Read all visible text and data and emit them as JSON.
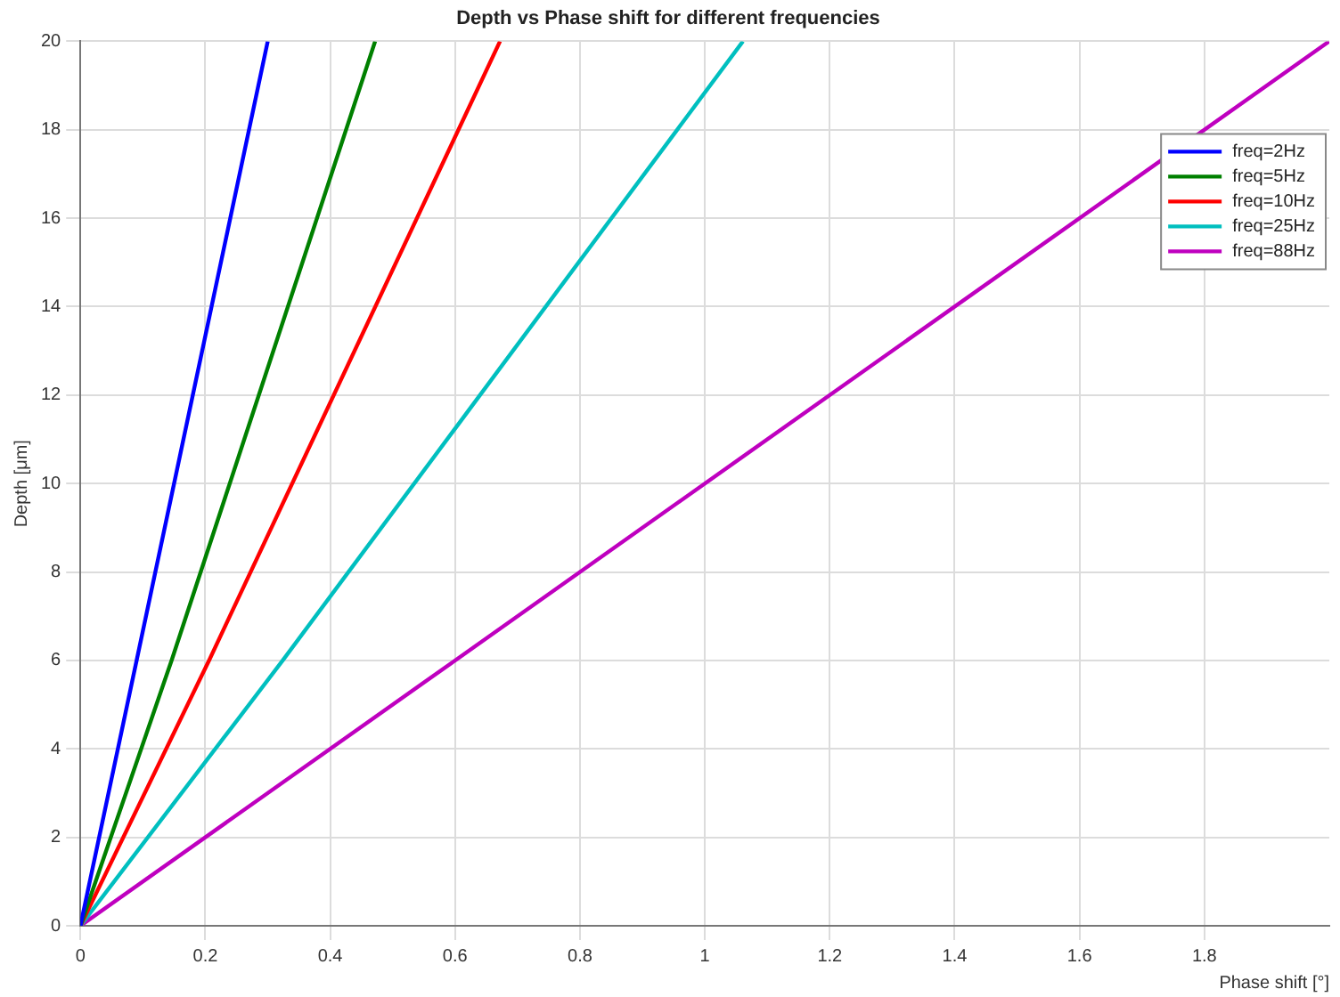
{
  "chart_data": {
    "type": "line",
    "title": "Depth vs Phase shift for different frequencies",
    "xlabel": "Phase shift [°]",
    "ylabel": "Depth [μm]",
    "series": [
      {
        "name": "freq=2Hz",
        "color": "#0000ff",
        "x": [
          0,
          0.09,
          0.3
        ],
        "values": [
          0,
          6,
          20
        ]
      },
      {
        "name": "freq=5Hz",
        "color": "#008000",
        "x": [
          0,
          0.146,
          0.472
        ],
        "values": [
          0,
          6,
          20
        ]
      },
      {
        "name": "freq=10Hz",
        "color": "#ff0000",
        "x": [
          0,
          0.206,
          0.672
        ],
        "values": [
          0,
          6,
          20
        ]
      },
      {
        "name": "freq=25Hz",
        "color": "#00bfbf",
        "x": [
          0,
          0.324,
          1.061
        ],
        "values": [
          0,
          6,
          20
        ]
      },
      {
        "name": "freq=88Hz",
        "color": "#bf00bf",
        "x": [
          0,
          0.6,
          2
        ],
        "values": [
          0,
          6,
          20
        ]
      }
    ],
    "xlim": [
      0,
      2
    ],
    "xticks": [
      0,
      0.2,
      0.4,
      0.6,
      0.8,
      1,
      1.2,
      1.4,
      1.6,
      1.8
    ],
    "ylim": [
      0,
      20
    ],
    "yticks": [
      0,
      2,
      4,
      6,
      8,
      10,
      12,
      14,
      16,
      18,
      20
    ],
    "grid": true,
    "legend": "top right",
    "marker": "none",
    "line_style": "solid"
  }
}
